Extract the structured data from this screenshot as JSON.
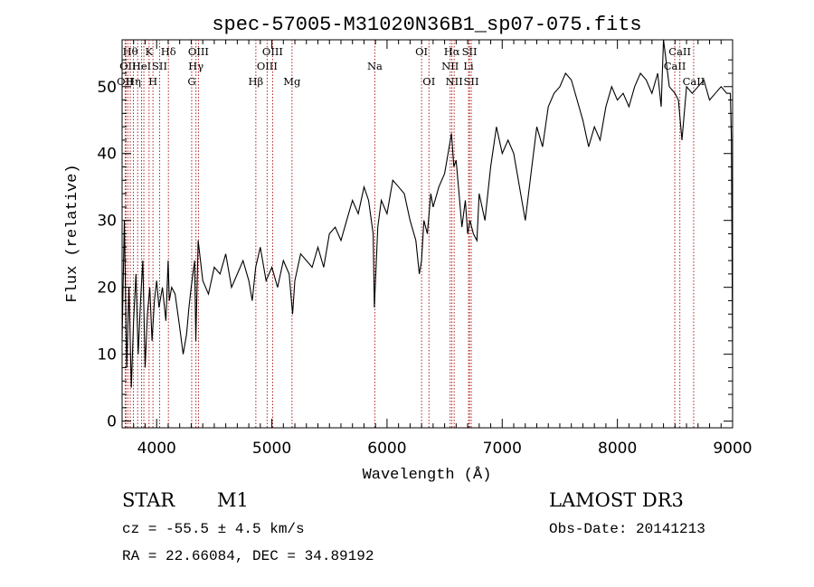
{
  "chart_data": {
    "type": "line",
    "title": "spec-57005-M31020N36B1_sp07-075.fits",
    "xlabel": "Wavelength (Å)",
    "ylabel": "Flux (relative)",
    "xlim": [
      3700,
      9000
    ],
    "ylim": [
      -1,
      57
    ],
    "x_ticks": [
      4000,
      5000,
      6000,
      7000,
      8000,
      9000
    ],
    "y_ticks": [
      0,
      10,
      20,
      30,
      40,
      50
    ],
    "grid": false,
    "line_color": "#000000",
    "marker_color": "#b22222",
    "series": [
      {
        "x": [
          3700,
          3720,
          3740,
          3760,
          3780,
          3800,
          3820,
          3840,
          3860,
          3880,
          3900,
          3920,
          3940,
          3960,
          3980,
          4000,
          4020,
          4050,
          4080,
          4100,
          4110,
          4130,
          4160,
          4200,
          4230,
          4260,
          4280,
          4300,
          4330,
          4340,
          4360,
          4400,
          4450,
          4500,
          4550,
          4600,
          4650,
          4700,
          4750,
          4800,
          4830,
          4860,
          4900,
          4950,
          5000,
          5050,
          5100,
          5150,
          5180,
          5200,
          5250,
          5300,
          5350,
          5400,
          5450,
          5500,
          5550,
          5600,
          5650,
          5700,
          5750,
          5800,
          5840,
          5880,
          5890,
          5920,
          5950,
          6000,
          6050,
          6100,
          6150,
          6200,
          6250,
          6280,
          6300,
          6320,
          6350,
          6380,
          6400,
          6450,
          6500,
          6530,
          6560,
          6580,
          6600,
          6620,
          6650,
          6680,
          6700,
          6720,
          6750,
          6780,
          6800,
          6850,
          6900,
          6950,
          7000,
          7050,
          7100,
          7150,
          7200,
          7250,
          7300,
          7350,
          7400,
          7450,
          7500,
          7550,
          7600,
          7650,
          7700,
          7750,
          7800,
          7850,
          7900,
          7950,
          8000,
          8050,
          8100,
          8150,
          8200,
          8250,
          8300,
          8350,
          8380,
          8400,
          8450,
          8500,
          8530,
          8560,
          8600,
          8650,
          8700,
          8750,
          8800,
          8850,
          8900,
          8950,
          8980,
          8990,
          9000
        ],
        "y": [
          12,
          30,
          8,
          20,
          5,
          15,
          22,
          10,
          18,
          24,
          8,
          16,
          20,
          12,
          18,
          21,
          17,
          20,
          15,
          24,
          18,
          20,
          19,
          14,
          10,
          13,
          17,
          20,
          24,
          12,
          27,
          21,
          19,
          23,
          22,
          25,
          20,
          22,
          24,
          21,
          18,
          23,
          26,
          21,
          23,
          20,
          24,
          22,
          16,
          21,
          25,
          24,
          23,
          26,
          23,
          28,
          29,
          27,
          30,
          33,
          31,
          35,
          33,
          28,
          17,
          29,
          33,
          31,
          36,
          35,
          34,
          30,
          27,
          22,
          24,
          30,
          28,
          34,
          32,
          35,
          37,
          40,
          43,
          38,
          39,
          35,
          29,
          33,
          28,
          30,
          28,
          27,
          34,
          30,
          38,
          44,
          40,
          42,
          40,
          35,
          30,
          37,
          44,
          41,
          47,
          49,
          50,
          52,
          51,
          48,
          45,
          41,
          44,
          42,
          47,
          50,
          48,
          49,
          47,
          50,
          52,
          51,
          49,
          52,
          47,
          57,
          50,
          49,
          48,
          42,
          50,
          49,
          50,
          51,
          48,
          49,
          50,
          49,
          49,
          42,
          10
        ]
      }
    ],
    "line_markers": [
      {
        "wavelength": 3727,
        "label": "OII",
        "row": 3
      },
      {
        "wavelength": 3734,
        "label": "",
        "row": 0
      },
      {
        "wavelength": 3750,
        "label": "OII",
        "row": 2
      },
      {
        "wavelength": 3771,
        "label": "Hθ",
        "row": 1
      },
      {
        "wavelength": 3798,
        "label": "Hη",
        "row": 3
      },
      {
        "wavelength": 3835,
        "label": "",
        "row": 0
      },
      {
        "wavelength": 3869,
        "label": "HeI",
        "row": 2
      },
      {
        "wavelength": 3889,
        "label": "",
        "row": 0
      },
      {
        "wavelength": 3934,
        "label": "K",
        "row": 1
      },
      {
        "wavelength": 3968,
        "label": "H",
        "row": 3
      },
      {
        "wavelength": 4026,
        "label": "SII",
        "row": 2
      },
      {
        "wavelength": 4102,
        "label": "Hδ",
        "row": 1
      },
      {
        "wavelength": 4304,
        "label": "G",
        "row": 3
      },
      {
        "wavelength": 4341,
        "label": "Hγ",
        "row": 2
      },
      {
        "wavelength": 4363,
        "label": "OIII",
        "row": 1
      },
      {
        "wavelength": 4861,
        "label": "Hβ",
        "row": 3
      },
      {
        "wavelength": 4959,
        "label": "OIII",
        "row": 2
      },
      {
        "wavelength": 5007,
        "label": "OIII",
        "row": 1
      },
      {
        "wavelength": 5175,
        "label": "Mg",
        "row": 3
      },
      {
        "wavelength": 5894,
        "label": "Na",
        "row": 2
      },
      {
        "wavelength": 6300,
        "label": "OI",
        "row": 1
      },
      {
        "wavelength": 6364,
        "label": "OI",
        "row": 3
      },
      {
        "wavelength": 6548,
        "label": "NII",
        "row": 2
      },
      {
        "wavelength": 6563,
        "label": "Hα",
        "row": 1
      },
      {
        "wavelength": 6583,
        "label": "NII",
        "row": 3
      },
      {
        "wavelength": 6708,
        "label": "Li",
        "row": 2
      },
      {
        "wavelength": 6716,
        "label": "SII",
        "row": 1
      },
      {
        "wavelength": 6731,
        "label": "SII",
        "row": 3
      },
      {
        "wavelength": 8498,
        "label": "CaII",
        "row": 2
      },
      {
        "wavelength": 8542,
        "label": "CaII",
        "row": 1
      },
      {
        "wavelength": 8662,
        "label": "CaII",
        "row": 3
      }
    ]
  },
  "info": {
    "class": "STAR",
    "subclass": "M1",
    "survey": "LAMOST DR3",
    "cz": "cz = -55.5 ± 4.5 km/s",
    "obs_date": "Obs-Date: 20141213",
    "radec": "RA =  22.66084, DEC =  34.89192"
  }
}
